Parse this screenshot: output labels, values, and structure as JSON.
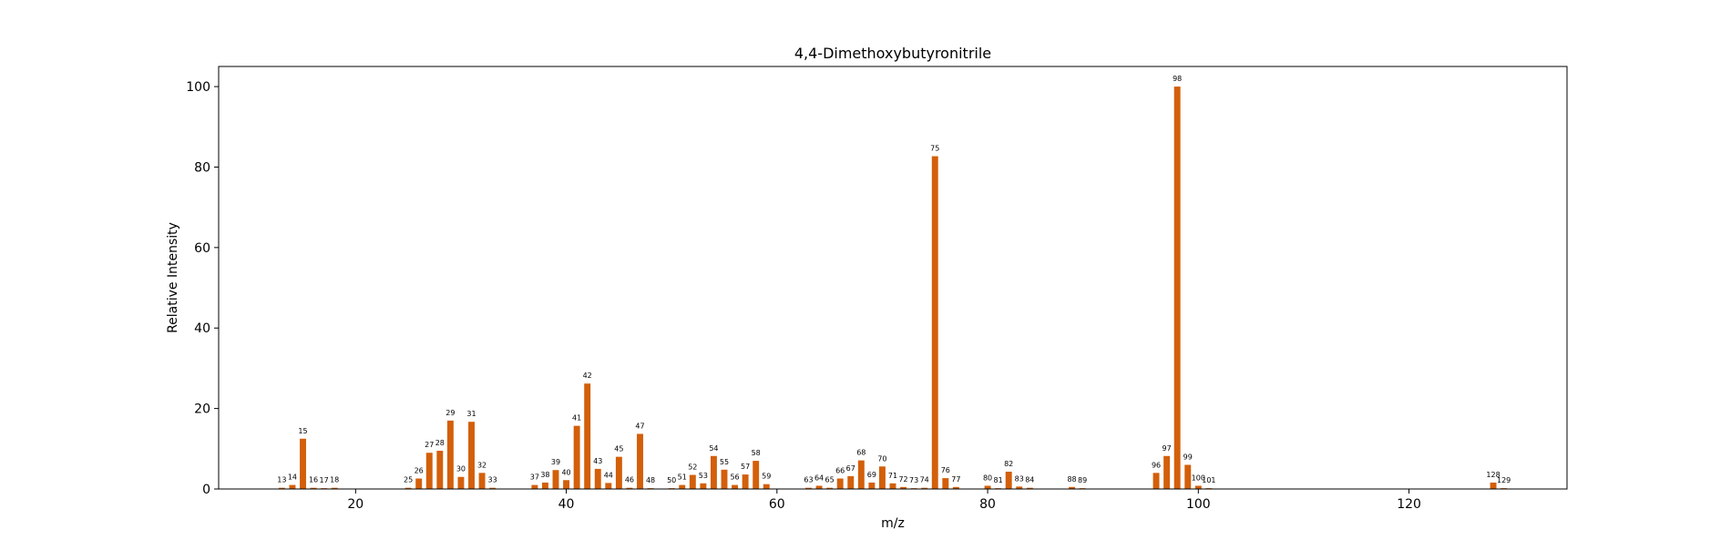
{
  "chart_data": {
    "type": "bar",
    "title": "4,4-Dimethoxybutyronitrile",
    "xlabel": "m/z",
    "ylabel": "Relative Intensity",
    "xlim": [
      7,
      135
    ],
    "ylim": [
      0,
      105
    ],
    "xticks": [
      20,
      40,
      60,
      80,
      100,
      120
    ],
    "yticks": [
      0,
      20,
      40,
      60,
      80,
      100
    ],
    "bar_color": "#d35f0a",
    "series": [
      {
        "x": [
          13,
          14,
          15,
          16,
          17,
          18,
          25,
          26,
          27,
          28,
          29,
          30,
          31,
          32,
          33,
          37,
          38,
          39,
          40,
          41,
          42,
          43,
          44,
          45,
          46,
          47,
          48,
          50,
          51,
          52,
          53,
          54,
          55,
          56,
          57,
          58,
          59,
          63,
          64,
          65,
          66,
          67,
          68,
          69,
          70,
          71,
          72,
          73,
          74,
          75,
          76,
          77,
          80,
          81,
          82,
          83,
          84,
          88,
          89,
          96,
          97,
          98,
          99,
          100,
          101,
          128,
          129
        ],
        "values": [
          0.3,
          1.0,
          12.5,
          0.3,
          0.2,
          0.3,
          0.3,
          2.6,
          9.0,
          9.5,
          17.0,
          3.0,
          16.7,
          4.0,
          0.3,
          1.0,
          1.6,
          4.7,
          2.2,
          15.7,
          26.2,
          5.0,
          1.5,
          8.0,
          0.3,
          13.7,
          0.2,
          0.2,
          1.0,
          3.5,
          1.4,
          8.2,
          4.8,
          1.0,
          3.6,
          7.0,
          1.2,
          0.3,
          0.8,
          0.3,
          2.6,
          3.2,
          7.1,
          1.6,
          5.6,
          1.4,
          0.5,
          0.2,
          0.3,
          82.7,
          2.7,
          0.5,
          0.8,
          0.2,
          4.3,
          0.6,
          0.3,
          0.5,
          0.2,
          4.0,
          8.2,
          100.0,
          6.0,
          0.8,
          0.2,
          1.6,
          0.2
        ]
      }
    ]
  }
}
